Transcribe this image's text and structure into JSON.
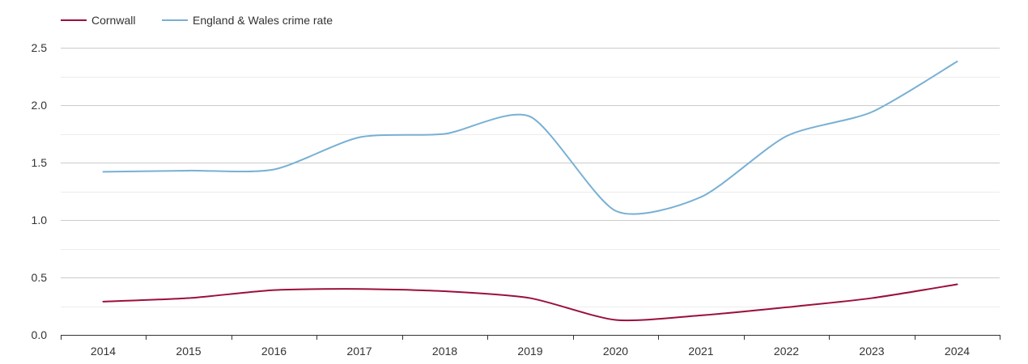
{
  "chart_data": {
    "type": "line",
    "title": "",
    "xlabel": "",
    "ylabel": "",
    "categories": [
      "2014",
      "2015",
      "2016",
      "2017",
      "2018",
      "2019",
      "2020",
      "2021",
      "2022",
      "2023",
      "2024"
    ],
    "ylim": [
      0,
      2.5
    ],
    "yticks": [
      "0.0",
      "0.5",
      "1.0",
      "1.5",
      "2.0",
      "2.5"
    ],
    "ytick_values": [
      0,
      0.5,
      1.0,
      1.5,
      2.0,
      2.5
    ],
    "grid": true,
    "legend_position": "top-left",
    "series": [
      {
        "name": "Cornwall",
        "color": "#9b0f3a",
        "values": [
          0.29,
          0.32,
          0.39,
          0.4,
          0.38,
          0.32,
          0.13,
          0.17,
          0.24,
          0.32,
          0.44
        ]
      },
      {
        "name": "England & Wales crime rate",
        "color": "#78b0d4",
        "values": [
          1.42,
          1.43,
          1.44,
          1.72,
          1.75,
          1.9,
          1.08,
          1.2,
          1.73,
          1.94,
          2.38
        ]
      }
    ]
  }
}
